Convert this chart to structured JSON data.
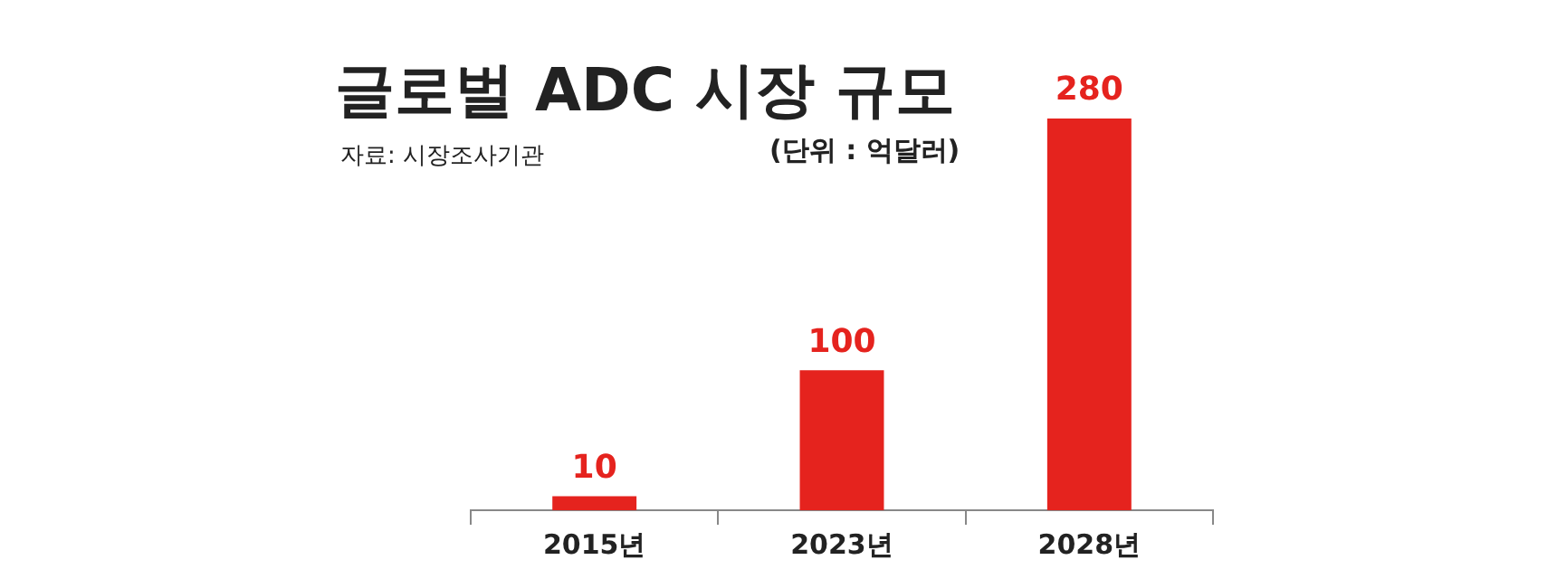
{
  "chart_data": {
    "type": "bar",
    "title": "글로벌 ADC 시장 규모",
    "categories": [
      "2015년",
      "2023년",
      "2028년"
    ],
    "values": [
      10,
      100,
      280
    ],
    "color": "#e5231e",
    "data_labels": true,
    "grid": false,
    "legend": false,
    "annotations": [
      "자료: 시장조사기관",
      "(단위 : 억달러)"
    ]
  }
}
